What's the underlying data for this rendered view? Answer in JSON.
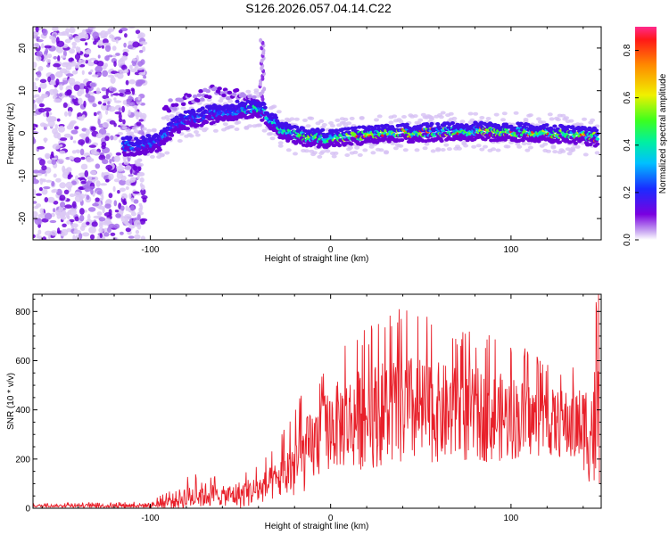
{
  "title": "S126.2026.057.04.14.C22",
  "colors": {
    "snr_line": "#e8202a",
    "spectrogram_dark": "#6a00d8",
    "spectrogram_light": "#d9c4f4",
    "axis": "#000000"
  },
  "chart_data": [
    {
      "type": "heatmap",
      "name": "spectrogram",
      "xlabel": "Height of straight line (km)",
      "ylabel": "Frequency (Hz)",
      "xlim": [
        -165,
        150
      ],
      "ylim": [
        -25,
        25
      ],
      "xticks": [
        -100,
        0,
        100
      ],
      "yticks": [
        -20,
        -10,
        0,
        10,
        20
      ],
      "grid": false,
      "ridge": {
        "x": [
          -115,
          -105,
          -95,
          -88,
          -80,
          -70,
          -60,
          -50,
          -40,
          -35,
          -28,
          -20,
          -10,
          0,
          20,
          40,
          60,
          80,
          100,
          120,
          140,
          148
        ],
        "freq": [
          -3,
          -3,
          -2,
          1,
          3,
          4,
          5,
          5.5,
          6,
          4,
          1,
          -0.5,
          -1,
          -1.2,
          -0.5,
          0,
          0.3,
          0.5,
          0.3,
          0,
          -0.5,
          -1
        ]
      },
      "colorbar": {
        "label": "Normalized spectral amplitude",
        "range": [
          0,
          0.9
        ],
        "ticks": [
          0.0,
          0.2,
          0.4,
          0.6,
          0.8
        ],
        "tick_labels": [
          "0.0",
          "0.2",
          "0.4",
          "0.6",
          "0.8"
        ]
      }
    },
    {
      "type": "line",
      "name": "snr",
      "xlabel": "Height of straight line (km)",
      "ylabel": "SNR (10 * v/v)",
      "xlim": [
        -165,
        150
      ],
      "ylim": [
        0,
        870
      ],
      "xticks": [
        -100,
        0,
        100
      ],
      "yticks": [
        0,
        200,
        400,
        600,
        800
      ],
      "grid": false,
      "series": [
        {
          "name": "SNR",
          "envelope": {
            "x": [
              -165,
              -120,
              -100,
              -90,
              -80,
              -70,
              -60,
              -50,
              -40,
              -30,
              -20,
              -10,
              0,
              10,
              20,
              30,
              40,
              50,
              60,
              70,
              80,
              90,
              100,
              110,
              120,
              130,
              140,
              148
            ],
            "mean": [
              10,
              10,
              12,
              25,
              45,
              55,
              50,
              55,
              75,
              110,
              170,
              250,
              330,
              350,
              370,
              390,
              400,
              390,
              390,
              380,
              380,
              370,
              370,
              360,
              350,
              340,
              330,
              320
            ],
            "peak": [
              20,
              25,
              30,
              70,
              140,
              150,
              120,
              160,
              180,
              250,
              430,
              530,
              640,
              700,
              760,
              780,
              830,
              790,
              760,
              740,
              730,
              700,
              690,
              640,
              600,
              600,
              640,
              870
            ]
          }
        }
      ]
    }
  ]
}
